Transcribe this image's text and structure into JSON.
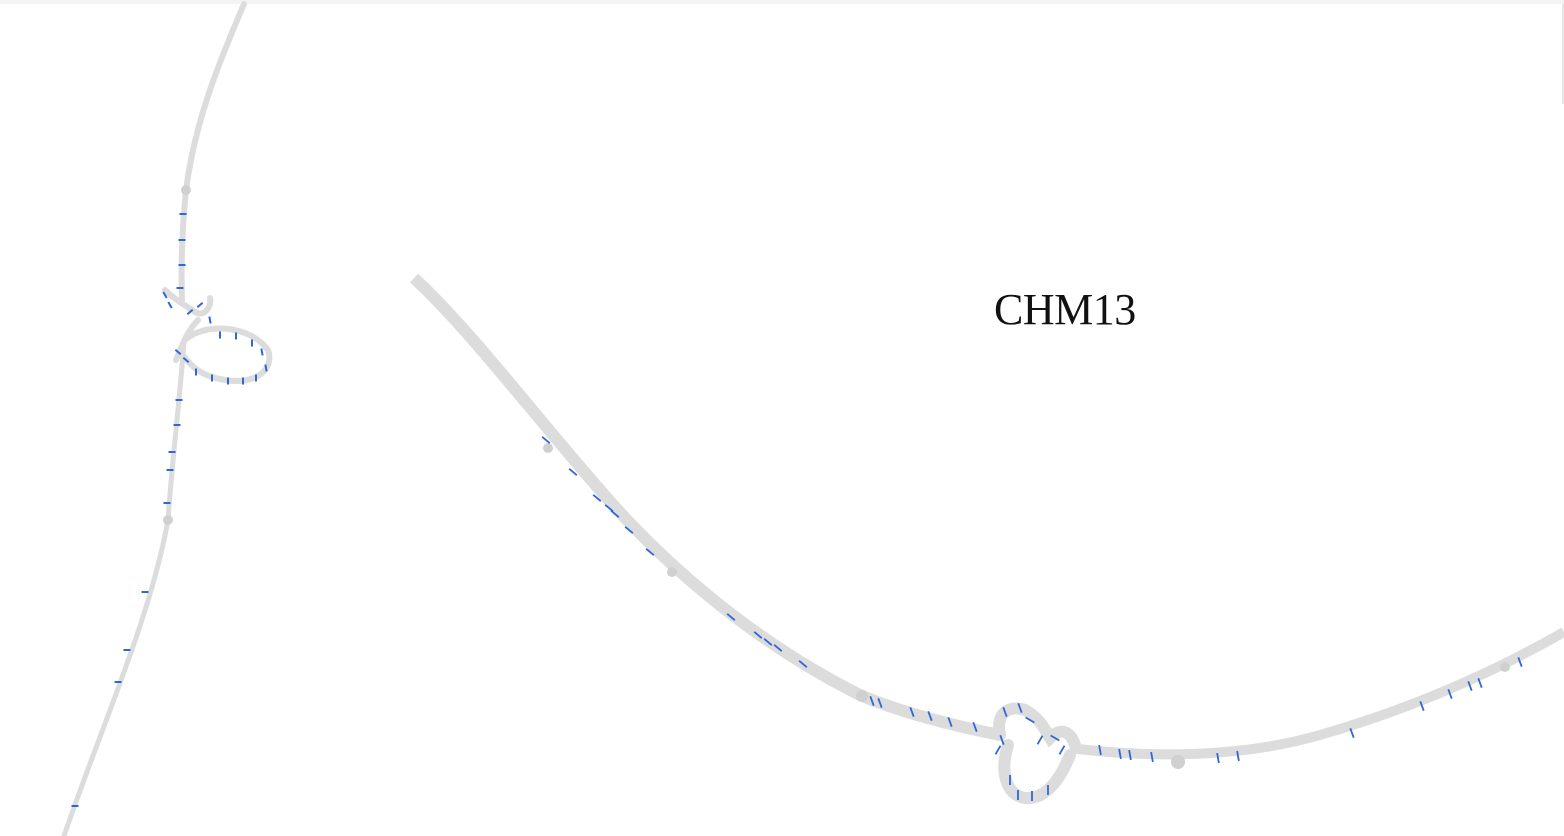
{
  "graph": {
    "label": "CHM13",
    "colors": {
      "background": "#ffffff",
      "edge": "#dcdcdc",
      "node": "#d0d0d0",
      "annotation": "#2f66d8",
      "label": "#111111"
    }
  }
}
